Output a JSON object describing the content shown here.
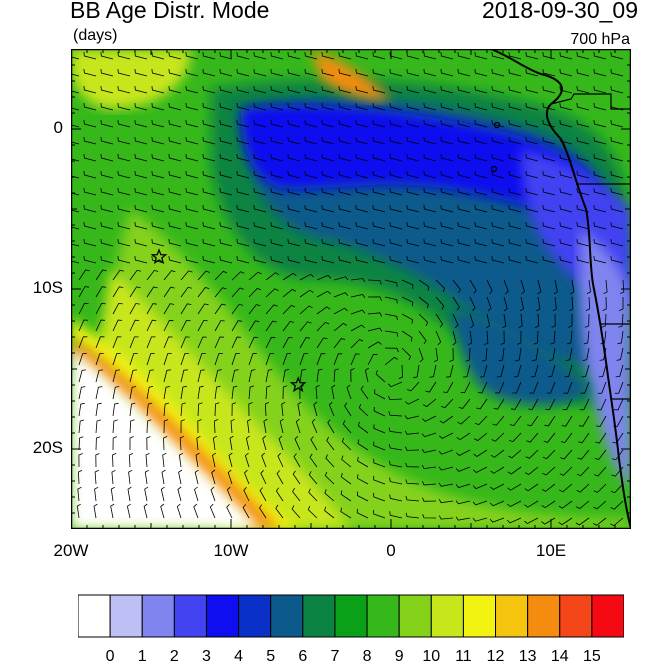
{
  "header": {
    "title": "BB Age Distr. Mode",
    "date": "2018-09-30_09",
    "units": "(days)",
    "level": "700 hPa"
  },
  "axes": {
    "lat_labels": [
      "0",
      "10S",
      "20S"
    ],
    "lat_values": [
      0,
      -10,
      -20
    ],
    "lon_labels": [
      "20W",
      "10W",
      "0",
      "10E"
    ],
    "lon_values": [
      -20,
      -10,
      0,
      10
    ],
    "lon_range": [
      -20,
      15
    ],
    "lat_range": [
      -25,
      5
    ]
  },
  "colorbar": {
    "labels": [
      "0",
      "1",
      "2",
      "3",
      "4",
      "5",
      "6",
      "7",
      "8",
      "9",
      "10",
      "11",
      "12",
      "13",
      "14",
      "15"
    ],
    "colors": [
      "#ffffff",
      "#bcc0f5",
      "#7f84ee",
      "#4343f2",
      "#0e0ef0",
      "#0a30c8",
      "#0c5a8c",
      "#0b8443",
      "#0aa018",
      "#36b81b",
      "#84d21a",
      "#c8e61a",
      "#f3f312",
      "#f5c40f",
      "#f58c0f",
      "#f5461a",
      "#f50a14"
    ]
  },
  "markers": [
    {
      "name": "star-marker-1",
      "lon": -14.5,
      "lat": -8
    },
    {
      "name": "star-marker-2",
      "lon": -5.8,
      "lat": -16
    }
  ]
}
